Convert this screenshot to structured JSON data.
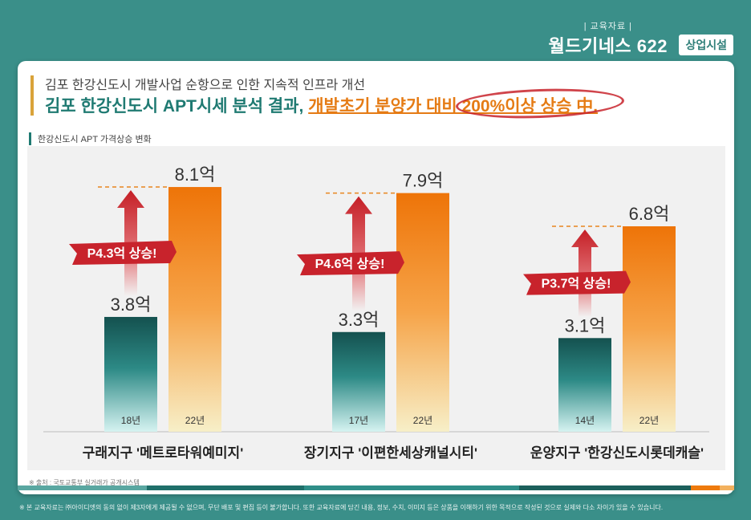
{
  "header": {
    "small_label": "| 교육자료 |",
    "brand": "월드기네스 622",
    "badge": "상업시설"
  },
  "card": {
    "subtitle": "김포 한강신도시 개발사업 순항으로 인한 지속적 인프라 개선",
    "title_main": "김포 한강신도시 APT시세 분석 결과,",
    "title_highlight": "개발초기 분양가 대비 200%이상 상승 中."
  },
  "section_label": "한강신도시 APT 가격상승 변화",
  "source": "※ 출처 : 국토교통부 실거래가 공개시스템",
  "footer_note": "※ 본 교육자료는 ㈜아이디엣의 동의 없이 제3자에게 제공될 수 없으며, 무단 배포 및 편집 등이 불가합니다. 또한 교육자료에 담긴 내용, 정보, 수치, 이미지 등은 상품을 이해하기 위한 목적으로 작성된 것으로 실제와 다소 차이가 있을 수 있습니다.",
  "colors": {
    "teal": "#1f6f6a",
    "orange": "#ee7a0c",
    "red": "#c8232c",
    "background": "#3a8f89"
  },
  "chart_data": {
    "type": "bar",
    "unit": "억",
    "ylim": [
      0,
      8.5
    ],
    "groups": [
      {
        "label": "구래지구 '메트로타워예미지'",
        "bars": [
          {
            "year": "18년",
            "value": 3.8,
            "label": "3.8억"
          },
          {
            "year": "22년",
            "value": 8.1,
            "label": "8.1억"
          }
        ],
        "rise": "P4.3억 상승!"
      },
      {
        "label": "장기지구 '이편한세상캐널시티'",
        "bars": [
          {
            "year": "17년",
            "value": 3.3,
            "label": "3.3억"
          },
          {
            "year": "22년",
            "value": 7.9,
            "label": "7.9억"
          }
        ],
        "rise": "P4.6억 상승!"
      },
      {
        "label": "운양지구 '한강신도시롯데캐슬'",
        "bars": [
          {
            "year": "14년",
            "value": 3.1,
            "label": "3.1억"
          },
          {
            "year": "22년",
            "value": 6.8,
            "label": "6.8억"
          }
        ],
        "rise": "P3.7억 상승!"
      }
    ]
  }
}
